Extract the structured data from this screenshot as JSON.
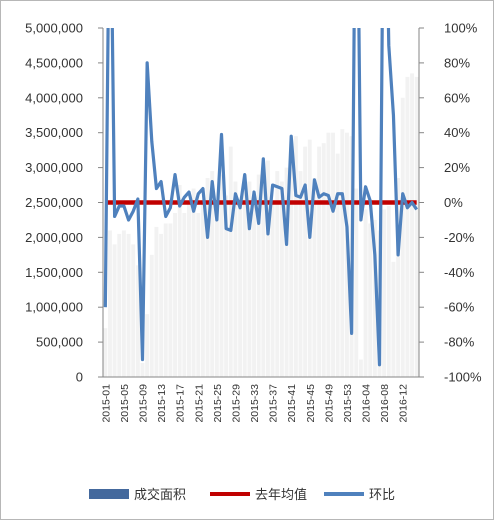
{
  "chart_data": {
    "type": "bar",
    "x_tick_labels": [
      "2015-01",
      "2015-05",
      "2015-09",
      "2015-13",
      "2015-17",
      "2015-21",
      "2015-25",
      "2015-29",
      "2015-33",
      "2015-37",
      "2015-41",
      "2015-45",
      "2015-49",
      "2015-53",
      "2016-04",
      "2016-08",
      "2016-12"
    ],
    "y_left_ticks": [
      "5,000,000",
      "4,500,000",
      "4,000,000",
      "3,500,000",
      "3,000,000",
      "2,500,000",
      "2,000,000",
      "1,500,000",
      "1,000,000",
      "500,000",
      "0"
    ],
    "y_right_ticks": [
      "100%",
      "80%",
      "60%",
      "40%",
      "20%",
      "0%",
      "-20%",
      "-40%",
      "-60%",
      "-80%",
      "-100%"
    ],
    "ylim_left": [
      0,
      5000000
    ],
    "ylim_right": [
      -100,
      100
    ],
    "series": [
      {
        "name": "成交面积",
        "kind": "bar",
        "axis": "left",
        "color": "#f2f2f2",
        "values": [
          700000,
          2100000,
          1900000,
          2050000,
          2100000,
          2050000,
          1900000,
          1600000,
          200000,
          900000,
          1750000,
          2150000,
          2050000,
          2200000,
          2200000,
          2350000,
          2750000,
          2350000,
          2500000,
          2700000,
          2350000,
          2500000,
          2850000,
          2950000,
          2500000,
          2900000,
          2600000,
          3300000,
          2800000,
          2550000,
          2900000,
          2800000,
          2600000,
          2900000,
          2750000,
          3100000,
          2500000,
          2950000,
          2800000,
          3000000,
          3050000,
          3450000,
          2950000,
          3300000,
          3400000,
          2850000,
          3300000,
          3350000,
          3500000,
          3500000,
          3200000,
          3550000,
          3500000,
          3450000,
          2700000,
          250000,
          2400000,
          2200000,
          2250000,
          2100000,
          2400000,
          2450000,
          1650000,
          2850000,
          4000000,
          4300000,
          4350000,
          4300000
        ]
      },
      {
        "name": "去年均值",
        "kind": "line",
        "axis": "left",
        "color": "#c00000",
        "values": [
          2500000,
          2500000
        ]
      },
      {
        "name": "环比",
        "kind": "line",
        "axis": "right",
        "color": "#4f81bd",
        "values": [
          -60,
          210,
          -8,
          -2,
          -2,
          -10,
          -5,
          2,
          -90,
          80,
          35,
          8,
          12,
          -8,
          -3,
          16,
          -2,
          3,
          6,
          -5,
          5,
          8,
          -20,
          12,
          -10,
          39,
          -15,
          -16,
          5,
          -3,
          16,
          -15,
          6,
          -12,
          25,
          -18,
          10,
          9,
          8,
          -24,
          38,
          4,
          3,
          10,
          -20,
          13,
          3,
          5,
          4,
          -5,
          5,
          5,
          -14,
          -75,
          250,
          -10,
          9,
          1,
          -30,
          -93,
          240,
          90,
          50,
          -30,
          5,
          -3,
          0,
          -4
        ]
      }
    ],
    "legend": {
      "position": "bottom",
      "entries": [
        {
          "label": "成交面积",
          "color": "#44699d",
          "marker": "thick-bar"
        },
        {
          "label": "去年均值",
          "color": "#c00000",
          "marker": "line"
        },
        {
          "label": "环比",
          "color": "#4f81bd",
          "marker": "line"
        }
      ]
    }
  }
}
